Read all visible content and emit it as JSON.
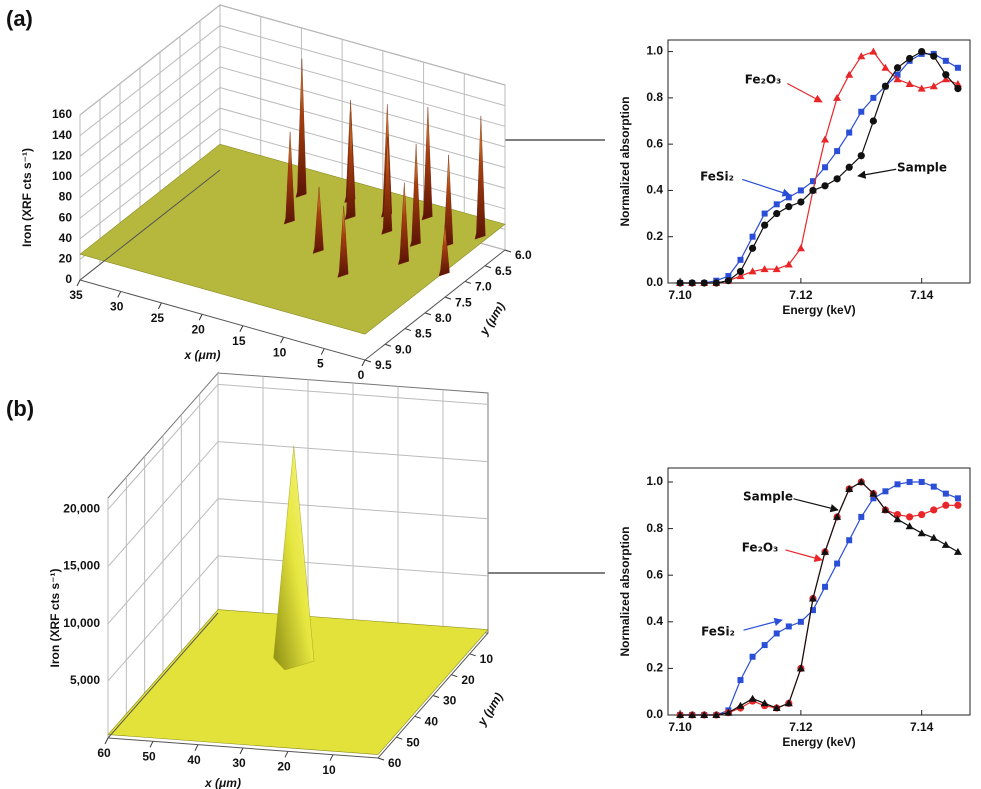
{
  "panel_labels": [
    "(a)",
    "(b)"
  ],
  "chart_data": [
    {
      "type": "surface3d",
      "zlabel": "Iron (XRF cts s⁻¹)",
      "xlabel": "x (μm)",
      "ylabel": "y (μm)",
      "xlim": [
        0,
        35
      ],
      "xticks": [
        0,
        5,
        10,
        15,
        20,
        25,
        30,
        35
      ],
      "ylim": [
        6,
        9.5
      ],
      "yticks": [
        {
          "value": 6,
          "label": "6.0"
        },
        6.5,
        {
          "value": 7,
          "label": "7.0"
        },
        7.5,
        {
          "value": 8,
          "label": "8.0"
        },
        8.5,
        {
          "value": 9,
          "label": "9.0"
        },
        9.5
      ],
      "zlim": [
        0,
        160
      ],
      "zticks": [
        0,
        20,
        40,
        60,
        80,
        100,
        120,
        140,
        160
      ],
      "surface_level": 25,
      "color": "#b6b83e",
      "peak_color": "#6e1e08",
      "peaks": {
        "x": [
          22,
          20,
          17,
          15,
          12,
          10,
          8,
          6,
          5,
          3,
          1,
          14,
          9,
          0
        ],
        "y": [
          6.6,
          7.3,
          6.4,
          6.8,
          6.5,
          6.9,
          6.3,
          7.0,
          7.5,
          6.8,
          6.4,
          7.8,
          8.2,
          7.5
        ],
        "values": [
          155,
          110,
          120,
          125,
          130,
          115,
          130,
          120,
          100,
          110,
          140,
          85,
          90,
          70
        ]
      }
    },
    {
      "type": "line",
      "xlabel": "Energy (keV)",
      "ylabel": "Normalized absorption",
      "xlim": [
        7.098,
        7.148
      ],
      "xticks": [
        {
          "value": 7.1,
          "label": "7.10"
        },
        7.12,
        7.14
      ],
      "ylim": [
        0,
        1.05
      ],
      "yticks": [
        {
          "value": 0,
          "label": "0.0"
        },
        0.2,
        0.4,
        0.6,
        0.8,
        {
          "value": 1,
          "label": "1.0"
        }
      ],
      "x": [
        7.1,
        7.102,
        7.104,
        7.106,
        7.108,
        7.11,
        7.112,
        7.114,
        7.116,
        7.118,
        7.12,
        7.122,
        7.124,
        7.126,
        7.128,
        7.13,
        7.132,
        7.134,
        7.136,
        7.138,
        7.14,
        7.142,
        7.144,
        7.146
      ],
      "series": [
        {
          "name": "FeSi₂",
          "color": "#2a4fd6",
          "marker": "square",
          "values": [
            0,
            0,
            0,
            0.01,
            0.03,
            0.1,
            0.2,
            0.3,
            0.34,
            0.37,
            0.4,
            0.44,
            0.5,
            0.57,
            0.65,
            0.74,
            0.8,
            0.85,
            0.9,
            0.96,
            0.99,
            0.99,
            0.96,
            0.93
          ]
        },
        {
          "name": "Fe₂O₃",
          "color": "#e8262a",
          "marker": "triangle",
          "values": [
            0,
            0,
            0,
            0,
            0.01,
            0.03,
            0.05,
            0.06,
            0.06,
            0.08,
            0.15,
            0.4,
            0.62,
            0.8,
            0.9,
            0.98,
            1.0,
            0.93,
            0.88,
            0.86,
            0.84,
            0.85,
            0.88,
            0.86
          ]
        },
        {
          "name": "Sample",
          "color": "#111111",
          "marker": "circle",
          "values": [
            0,
            0,
            0,
            0,
            0.01,
            0.05,
            0.15,
            0.25,
            0.3,
            0.33,
            0.35,
            0.4,
            0.42,
            0.45,
            0.5,
            0.55,
            0.7,
            0.85,
            0.93,
            0.97,
            1.0,
            0.98,
            0.9,
            0.84
          ]
        }
      ]
    },
    {
      "type": "surface3d",
      "zlabel": "Iron (XRF cts s⁻¹)",
      "xlabel": "x (μm)",
      "ylabel": "y (μm)",
      "xlim": [
        0,
        60
      ],
      "xticks": [
        10,
        20,
        30,
        40,
        50,
        60
      ],
      "ylim": [
        0,
        60
      ],
      "yticks": [
        10,
        20,
        30,
        40,
        50,
        60
      ],
      "zlim": [
        0,
        21000
      ],
      "zticks": [
        {
          "value": 5000,
          "label": "5,000"
        },
        {
          "value": 10000,
          "label": "10,000"
        },
        {
          "value": 15000,
          "label": "15,000"
        },
        {
          "value": 20000,
          "label": "20,000"
        }
      ],
      "surface_level": 300,
      "color": "#e2e23a",
      "peak_color": "#9a9a10",
      "peaks": {
        "x": [
          35
        ],
        "y": [
          20
        ],
        "values": [
          19000
        ]
      }
    },
    {
      "type": "line",
      "xlabel": "Energy (keV)",
      "ylabel": "Normalized absorption",
      "xlim": [
        7.098,
        7.148
      ],
      "xticks": [
        {
          "value": 7.1,
          "label": "7.10"
        },
        7.12,
        7.14
      ],
      "ylim": [
        0,
        1.06
      ],
      "yticks": [
        {
          "value": 0,
          "label": "0.0"
        },
        0.2,
        0.4,
        0.6,
        0.8,
        {
          "value": 1,
          "label": "1.0"
        }
      ],
      "x": [
        7.1,
        7.102,
        7.104,
        7.106,
        7.108,
        7.11,
        7.112,
        7.114,
        7.116,
        7.118,
        7.12,
        7.122,
        7.124,
        7.126,
        7.128,
        7.13,
        7.132,
        7.134,
        7.136,
        7.138,
        7.14,
        7.142,
        7.144,
        7.146
      ],
      "series": [
        {
          "name": "FeSi₂",
          "color": "#2a4fd6",
          "marker": "square",
          "values": [
            0,
            0,
            0,
            0,
            0.02,
            0.15,
            0.25,
            0.3,
            0.35,
            0.38,
            0.4,
            0.45,
            0.55,
            0.65,
            0.75,
            0.85,
            0.93,
            0.96,
            0.99,
            1.0,
            1.0,
            0.98,
            0.95,
            0.93
          ]
        },
        {
          "name": "Fe₂O₃",
          "color": "#e8262a",
          "marker": "circle",
          "values": [
            0,
            0,
            0,
            0,
            0.01,
            0.03,
            0.06,
            0.04,
            0.03,
            0.05,
            0.2,
            0.5,
            0.7,
            0.85,
            0.97,
            1.0,
            0.95,
            0.88,
            0.86,
            0.85,
            0.86,
            0.88,
            0.9,
            0.9
          ]
        },
        {
          "name": "Sample",
          "color": "#111111",
          "marker": "triangle",
          "values": [
            0,
            0,
            0,
            0,
            0.01,
            0.04,
            0.07,
            0.05,
            0.03,
            0.05,
            0.2,
            0.5,
            0.7,
            0.85,
            0.97,
            1.0,
            0.95,
            0.88,
            0.84,
            0.81,
            0.78,
            0.76,
            0.73,
            0.7
          ]
        }
      ]
    }
  ]
}
